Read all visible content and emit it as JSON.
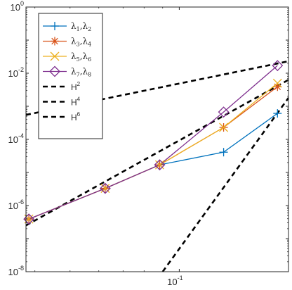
{
  "chart_data": {
    "type": "line",
    "title": "",
    "xlabel": "",
    "ylabel": "",
    "xscale": "log",
    "yscale": "log",
    "xlim": [
      0.0378,
      0.2
    ],
    "ylim": [
      1e-08,
      1
    ],
    "grid": false,
    "legend_position": "top-left",
    "x_ticks": [
      {
        "value": 0.1,
        "base": "10",
        "exp": "-1"
      }
    ],
    "y_ticks": [
      {
        "value": 1e-08,
        "base": "10",
        "exp": "-8"
      },
      {
        "value": 1e-06,
        "base": "10",
        "exp": "-6"
      },
      {
        "value": 0.0001,
        "base": "10",
        "exp": "-4"
      },
      {
        "value": 0.01,
        "base": "10",
        "exp": "-2"
      },
      {
        "value": 1,
        "base": "10",
        "exp": "0"
      }
    ],
    "series": [
      {
        "symbol": "λ",
        "sub1": "1",
        "sub2": "2",
        "color": "#0072BD",
        "marker": "plus",
        "x": [
          0.0385,
          0.0625,
          0.0883,
          0.1325,
          0.1865
        ],
        "y": [
          3.9e-07,
          3.3e-06,
          1.7e-05,
          4.1e-05,
          0.00061
        ]
      },
      {
        "symbol": "λ",
        "sub1": "3",
        "sub2": "4",
        "color": "#D95319",
        "marker": "asterisk",
        "x": [
          0.0385,
          0.0625,
          0.0883,
          0.1325,
          0.1865
        ],
        "y": [
          3.9e-07,
          3.3e-06,
          1.7e-05,
          0.00023,
          0.0039
        ]
      },
      {
        "symbol": "λ",
        "sub1": "5",
        "sub2": "6",
        "color": "#EDB120",
        "marker": "x",
        "x": [
          0.0385,
          0.0625,
          0.0883,
          0.1325,
          0.1865
        ],
        "y": [
          3.9e-07,
          3.3e-06,
          1.7e-05,
          0.00023,
          0.005
        ]
      },
      {
        "symbol": "λ",
        "sub1": "7",
        "sub2": "8",
        "color": "#7E2F8E",
        "marker": "diamond",
        "x": [
          0.0385,
          0.0625,
          0.0883,
          0.1325,
          0.1865
        ],
        "y": [
          3.9e-07,
          3.3e-06,
          1.7e-05,
          0.00067,
          0.017
        ]
      }
    ],
    "reference_lines": [
      {
        "base": "H",
        "exp": "2",
        "color": "#000000",
        "dash": "dashed",
        "points": [
          [
            0.0378,
            0.00055
          ],
          [
            0.2,
            0.023
          ]
        ]
      },
      {
        "base": "H",
        "exp": "4",
        "color": "#000000",
        "dash": "dashed",
        "points": [
          [
            0.0378,
            2.5e-07
          ],
          [
            0.2,
            0.0063
          ]
        ]
      },
      {
        "base": "H",
        "exp": "6",
        "color": "#000000",
        "dash": "dashed",
        "points": [
          [
            0.09,
            1e-08
          ],
          [
            0.2,
            0.0018
          ]
        ]
      }
    ]
  }
}
